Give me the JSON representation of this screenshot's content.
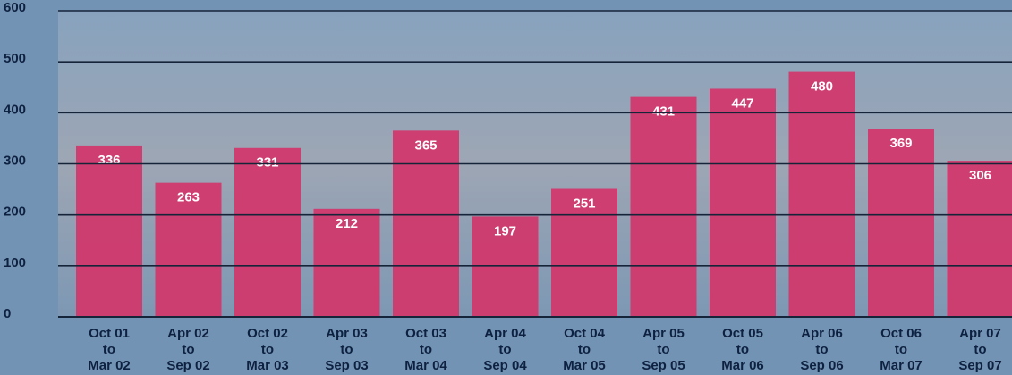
{
  "chart_data": {
    "type": "bar",
    "categories": [
      "Oct 01\nto\nMar 02",
      "Apr 02\nto\nSep 02",
      "Oct 02\nto\nMar 03",
      "Apr 03\nto\nSep 03",
      "Oct 03\nto\nMar 04",
      "Apr 04\nto\nSep 04",
      "Oct 04\nto\nMar 05",
      "Apr 05\nto\nSep 05",
      "Oct 05\nto\nMar 06",
      "Apr 06\nto\nSep 06",
      "Oct 06\nto\nMar 07",
      "Apr 07\nto\nSep 07"
    ],
    "values": [
      336,
      263,
      331,
      212,
      365,
      197,
      251,
      431,
      447,
      480,
      369,
      306
    ],
    "color": "#d2356a",
    "ylim": [
      0,
      600
    ],
    "yticks": [
      0,
      100,
      200,
      300,
      400,
      500,
      600
    ],
    "grid": true
  }
}
